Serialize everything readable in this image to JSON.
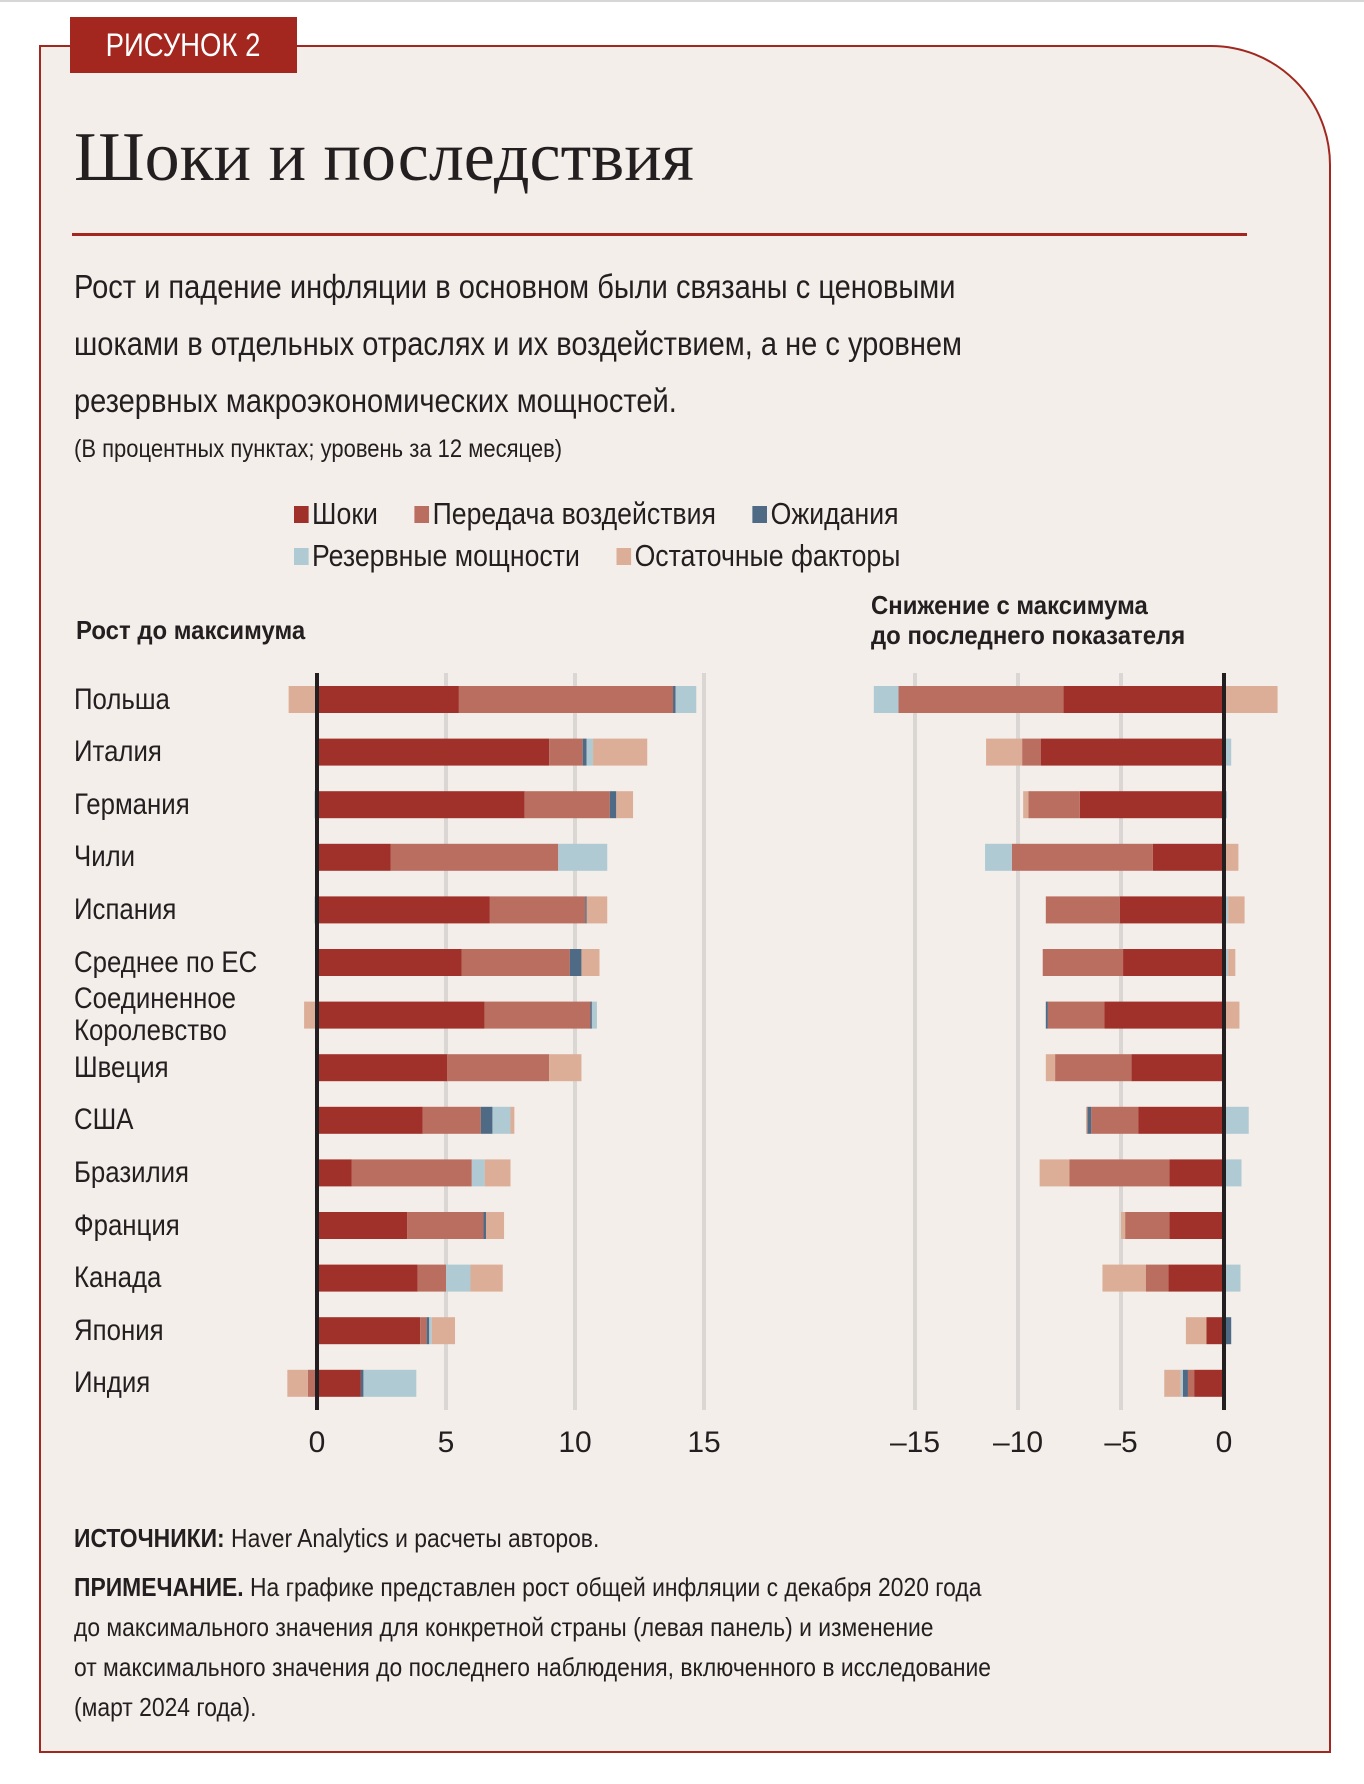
{
  "figure_tag": "РИСУНОК 2",
  "title": "Шоки и последствия",
  "subtitle_lines": [
    "Рост и падение инфляции в основном были связаны с ценовыми",
    "шоками в отдельных отраслях и их воздействием, а не с уровнем",
    "резервных макроэкономических мощностей."
  ],
  "units_note": "(В процентных пунктах; уровень за 12 месяцев)",
  "legend": [
    {
      "label": "Шоки",
      "color": "#a0302a"
    },
    {
      "label": "Передача воздействия",
      "color": "#b96e60"
    },
    {
      "label": "Ожидания",
      "color": "#4e6a85"
    },
    {
      "label": "Резервные мощности",
      "color": "#afcad2"
    },
    {
      "label": "Остаточные факторы",
      "color": "#dcae98"
    }
  ],
  "notes": {
    "sources_label": "ИСТОЧНИКИ:",
    "sources_text": " Haver Analytics и расчеты авторов.",
    "note_label": "ПРИМЕЧАНИЕ.",
    "note_lines": [
      " На графике представлен рост общей инфляции с декабря 2020 года",
      "до максимального значения для конкретной страны (левая панель) и изменение",
      "от максимального значения до последнего наблюдения, включенного в исследование",
      "(март 2024 года)."
    ]
  },
  "chart_data": [
    {
      "type": "bar",
      "orientation": "horizontal",
      "stacked": true,
      "title": "Рост до максимума",
      "categories": [
        "Польша",
        "Италия",
        "Германия",
        "Чили",
        "Испания",
        "Среднее по ЕС",
        "Соединенное Королевство",
        "Швеция",
        "США",
        "Бразилия",
        "Франция",
        "Канада",
        "Япония",
        "Индия"
      ],
      "category_lines": [
        [
          "Польша"
        ],
        [
          "Италия"
        ],
        [
          "Германия"
        ],
        [
          "Чили"
        ],
        [
          "Испания"
        ],
        [
          "Среднее по ЕС"
        ],
        [
          "Соединенное",
          "Королевство"
        ],
        [
          "Швеция"
        ],
        [
          "США"
        ],
        [
          "Бразилия"
        ],
        [
          "Франция"
        ],
        [
          "Канада"
        ],
        [
          "Япония"
        ],
        [
          "Индия"
        ]
      ],
      "xlim": [
        -1.5,
        16
      ],
      "xticks": [
        0,
        5,
        10,
        15
      ],
      "xtick_labels": [
        "0",
        "5",
        "10",
        "15"
      ],
      "grid": true,
      "series": [
        {
          "name": "Шоки",
          "values": [
            5.5,
            9.0,
            8.05,
            2.85,
            6.7,
            5.6,
            6.5,
            5.05,
            4.1,
            1.35,
            3.5,
            3.9,
            4.0,
            1.7
          ]
        },
        {
          "name": "Передача воздействия",
          "values": [
            8.3,
            1.3,
            3.3,
            6.5,
            3.7,
            4.2,
            4.1,
            3.95,
            2.25,
            4.65,
            2.95,
            1.1,
            0.25,
            -0.35
          ]
        },
        {
          "name": "Ожидания",
          "values": [
            0.1,
            0.15,
            0.25,
            0.0,
            0.05,
            0.45,
            0.05,
            0.0,
            0.45,
            0.0,
            0.1,
            0.0,
            0.1,
            0.1
          ]
        },
        {
          "name": "Резервные мощности",
          "values": [
            0.8,
            0.25,
            -0.1,
            1.9,
            -0.1,
            0.0,
            0.2,
            0.0,
            0.7,
            0.5,
            0.0,
            0.95,
            0.1,
            2.05
          ]
        },
        {
          "name": "Остаточные факторы",
          "values": [
            -1.1,
            2.1,
            0.65,
            0.0,
            0.8,
            0.7,
            -0.5,
            1.25,
            0.15,
            1.0,
            0.7,
            1.25,
            0.9,
            -0.8
          ]
        }
      ]
    },
    {
      "type": "bar",
      "orientation": "horizontal",
      "stacked": true,
      "title_lines": [
        "Снижение с максимума",
        "до последнего показателя"
      ],
      "categories": [
        "Польша",
        "Италия",
        "Германия",
        "Чили",
        "Испания",
        "Среднее по ЕС",
        "Соединенное Королевство",
        "Швеция",
        "США",
        "Бразилия",
        "Франция",
        "Канада",
        "Япония",
        "Индия"
      ],
      "xlim": [
        -17,
        3
      ],
      "xticks": [
        -15,
        -10,
        -5,
        0
      ],
      "xtick_labels": [
        "–15",
        "–10",
        "–5",
        "0"
      ],
      "grid": true,
      "series": [
        {
          "name": "Шоки",
          "values": [
            -7.8,
            -8.9,
            -7.0,
            -3.45,
            -5.05,
            -4.9,
            -5.8,
            -4.5,
            -4.15,
            -2.65,
            -2.65,
            -2.7,
            -0.85,
            -1.45
          ]
        },
        {
          "name": "Передача воздействия",
          "values": [
            -8.0,
            -0.9,
            -2.5,
            -6.85,
            -3.6,
            -3.9,
            -2.75,
            -3.7,
            -2.3,
            -4.85,
            -2.15,
            -1.1,
            0.0,
            -0.3
          ]
        },
        {
          "name": "Ожидания",
          "values": [
            0.0,
            0.0,
            0.0,
            0.0,
            0.0,
            0.0,
            -0.1,
            0.0,
            -0.2,
            0.0,
            0.0,
            0.0,
            0.35,
            -0.25
          ]
        },
        {
          "name": "Резервные мощности",
          "values": [
            -1.2,
            0.35,
            0.15,
            -1.3,
            0.2,
            0.2,
            0.0,
            0.1,
            1.2,
            0.85,
            0.0,
            0.8,
            0.0,
            -0.1
          ]
        },
        {
          "name": "Остаточные факторы",
          "values": [
            2.6,
            -1.75,
            -0.25,
            0.7,
            0.8,
            0.35,
            0.75,
            -0.45,
            -0.05,
            -1.45,
            -0.2,
            -2.1,
            -1.0,
            -0.8
          ]
        }
      ]
    }
  ]
}
